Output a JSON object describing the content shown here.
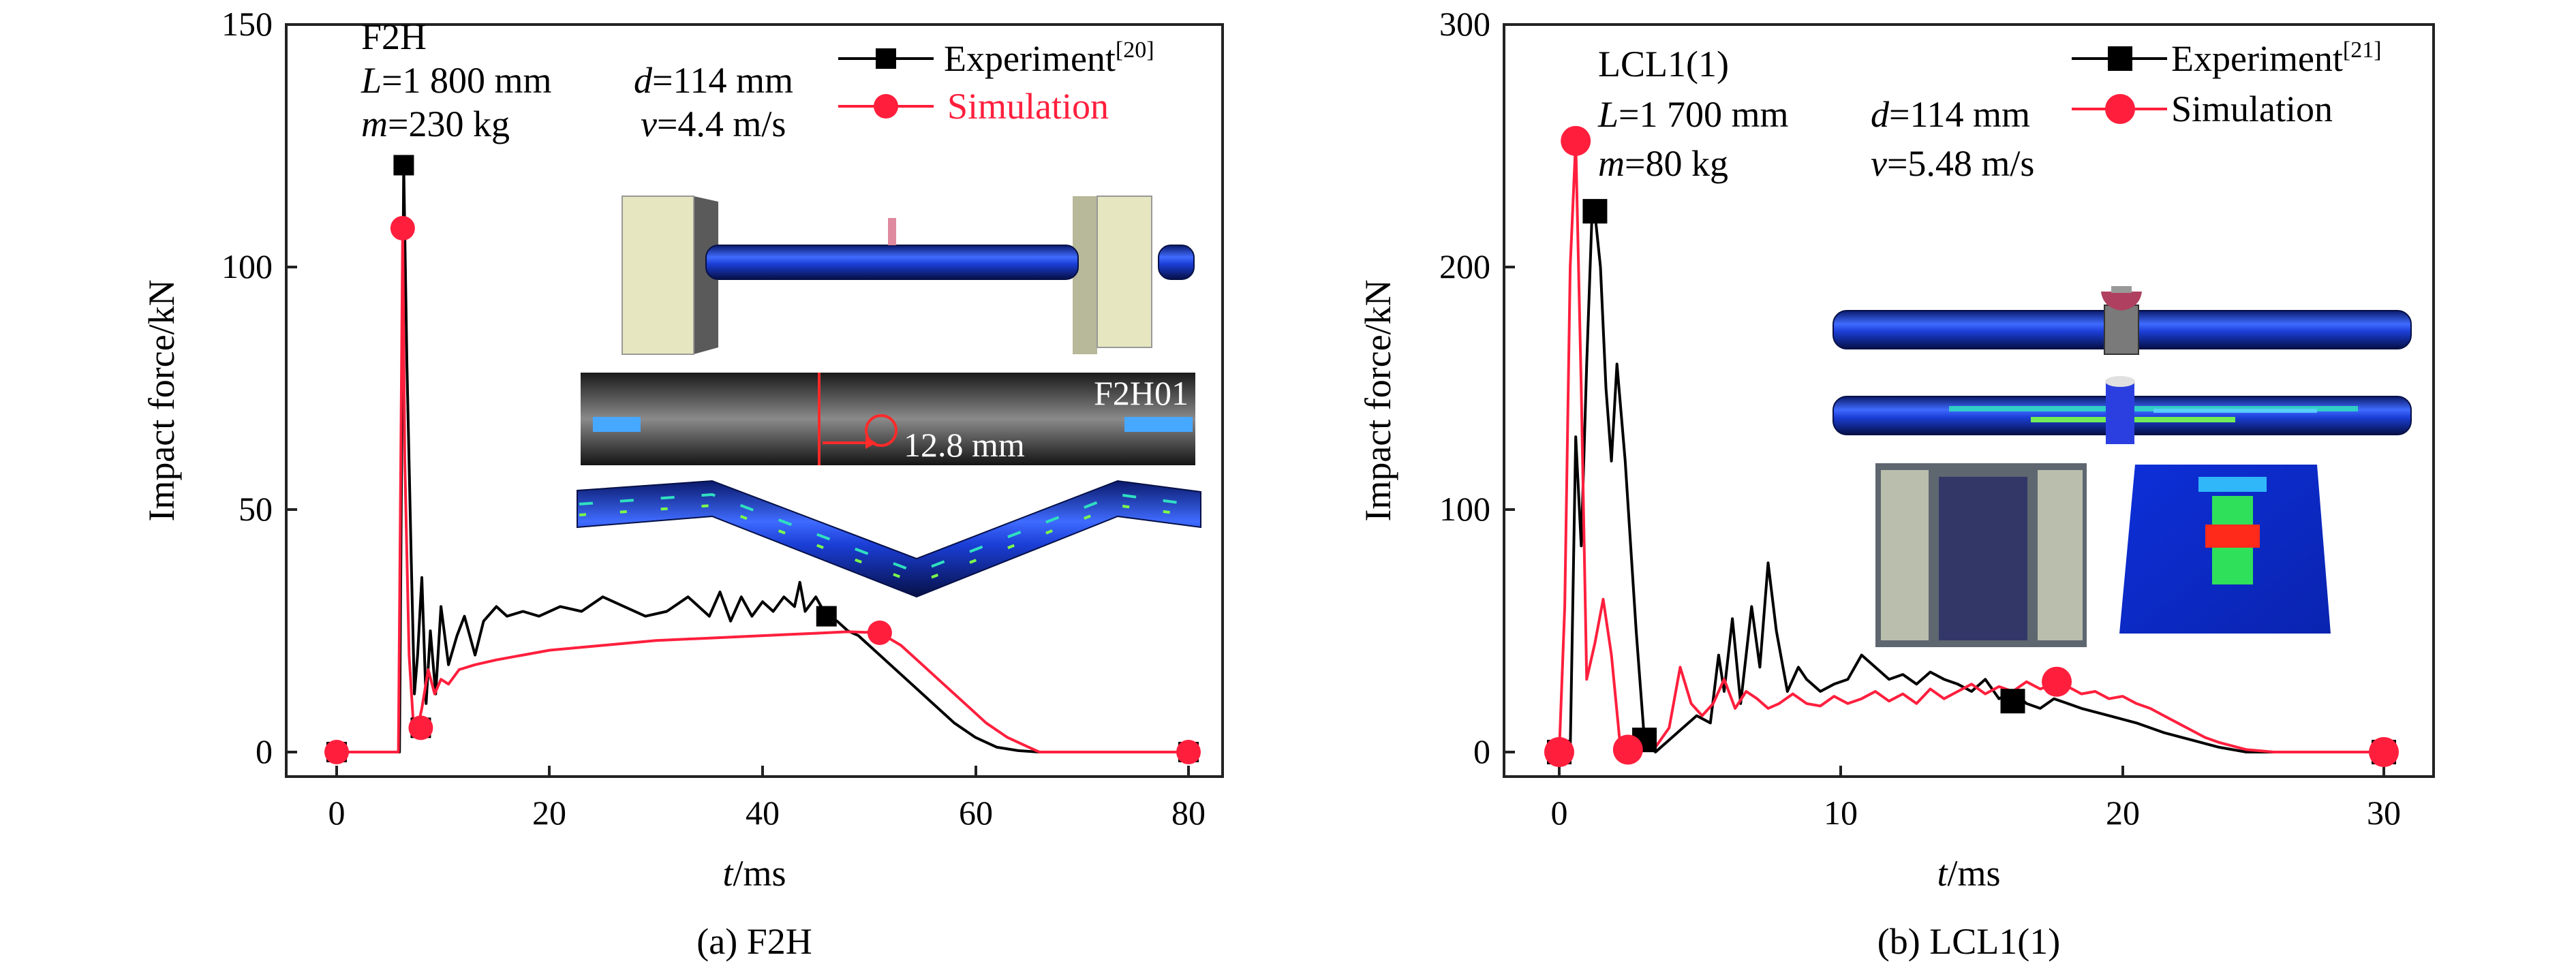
{
  "chart_data": [
    {
      "type": "line",
      "caption": "(a) F2H",
      "xlabel_italic": "t",
      "xlabel_unit": "/ms",
      "ylabel": "Impact force/kN",
      "xlim": [
        -4,
        84
      ],
      "ylim": [
        0,
        150
      ],
      "xticks": [
        "0",
        "20",
        "40",
        "60",
        "80"
      ],
      "yticks": [
        "0",
        "50",
        "100",
        "150"
      ],
      "annotation": {
        "specimen": "F2H",
        "L_sym": "L",
        "L_val": "=1 800 mm",
        "d_sym": "d",
        "d_val": "=114 mm",
        "m_sym": "m",
        "m_val": "=230 kg",
        "v_sym": "v",
        "v_val": "=4.4 m/s"
      },
      "inset_labels": {
        "photo_id": "F2H01",
        "photo_value": "12.8 mm"
      },
      "legend": {
        "position": "top-right",
        "entries": [
          {
            "label": "Experiment",
            "ref": "[20]",
            "color": "#000000",
            "marker": "square"
          },
          {
            "label": "Simulation",
            "ref": "",
            "color": "#ff1f3d",
            "marker": "circle"
          }
        ]
      },
      "series": [
        {
          "name": "Experiment",
          "color": "#000000",
          "x": [
            0,
            5.9,
            6.3,
            6.6,
            7.0,
            7.3,
            7.6,
            8.0,
            8.4,
            8.8,
            9.3,
            9.8,
            10.5,
            11.3,
            12.0,
            13.0,
            13.8,
            15.0,
            16.0,
            17.5,
            19.0,
            21.0,
            23.0,
            25.0,
            27.0,
            29.0,
            31.0,
            33.0,
            35.0,
            36.0,
            37.0,
            38.0,
            39.0,
            40.0,
            41.0,
            42.0,
            43.0,
            43.5,
            44.0,
            45.0,
            46.0,
            47.0,
            48.0,
            49.0,
            50.0,
            52.0,
            54.0,
            56.0,
            58.0,
            60.0,
            62.0,
            64.0,
            66.0,
            70.0,
            80.0
          ],
          "y": [
            0,
            0,
            121,
            80,
            40,
            12,
            20,
            36,
            10,
            25,
            12,
            30,
            18,
            24,
            28,
            20,
            27,
            30,
            28,
            29,
            28,
            30,
            29,
            32,
            30,
            28,
            29,
            32,
            28,
            33,
            27,
            32,
            28,
            31,
            29,
            32,
            30,
            35,
            29,
            32,
            28,
            27,
            25,
            24,
            22,
            18,
            14,
            10,
            6,
            3,
            1,
            0.3,
            0,
            0,
            0
          ]
        },
        {
          "name": "Simulation",
          "color": "#ff1f3d",
          "x": [
            0,
            5.8,
            6.2,
            6.4,
            6.8,
            7.2,
            7.6,
            8.0,
            8.6,
            9.2,
            9.8,
            10.5,
            11.5,
            13.0,
            15.0,
            17.5,
            20.0,
            25.0,
            30.0,
            35.0,
            40.0,
            45.0,
            48.0,
            51.0,
            53.0,
            55.0,
            57.0,
            59.0,
            61.0,
            63.0,
            65.0,
            66.0,
            70.0,
            80.0
          ],
          "y": [
            0,
            0,
            108,
            60,
            20,
            6,
            5,
            9,
            17,
            12,
            15,
            14,
            17,
            18,
            19,
            20,
            21,
            22,
            23,
            23.5,
            24,
            24.5,
            24.8,
            24.6,
            22,
            18,
            14,
            10,
            6,
            3,
            1,
            0,
            0,
            0
          ]
        }
      ],
      "markers": {
        "Experiment": {
          "x": [
            0,
            6.3,
            7.9,
            46.0,
            80.0
          ],
          "y": [
            0,
            121,
            5,
            28,
            0
          ]
        },
        "Simulation": {
          "x": [
            0,
            6.2,
            7.9,
            51.0,
            80.0
          ],
          "y": [
            0,
            108,
            5,
            24.6,
            0
          ]
        }
      }
    },
    {
      "type": "line",
      "caption": "(b) LCL1(1)",
      "xlabel_italic": "t",
      "xlabel_unit": "/ms",
      "ylabel": "Impact force/kN",
      "xlim": [
        -2,
        31
      ],
      "ylim": [
        0,
        300
      ],
      "xticks": [
        "0",
        "10",
        "20",
        "30"
      ],
      "yticks": [
        "0",
        "100",
        "200",
        "300"
      ],
      "annotation": {
        "specimen": "LCL1(1)",
        "L_sym": "L",
        "L_val": "=1 700 mm",
        "d_sym": "d",
        "d_val": "=114 mm",
        "m_sym": "m",
        "m_val": "=80 kg",
        "v_sym": "v",
        "v_val": "=5.48 m/s"
      },
      "legend": {
        "position": "top-right",
        "entries": [
          {
            "label": "Experiment",
            "ref": "[21]",
            "color": "#000000",
            "marker": "square"
          },
          {
            "label": "Simulation",
            "ref": "",
            "color": "#ff1f3d",
            "marker": "circle"
          }
        ]
      },
      "series": [
        {
          "name": "Experiment",
          "color": "#000000",
          "x": [
            0,
            0.4,
            0.6,
            0.8,
            1.0,
            1.2,
            1.3,
            1.5,
            1.7,
            1.9,
            2.1,
            2.4,
            2.8,
            3.1,
            3.5,
            4.0,
            4.5,
            5.0,
            5.5,
            5.8,
            6.0,
            6.3,
            6.6,
            7.0,
            7.3,
            7.6,
            7.9,
            8.3,
            8.7,
            9.0,
            9.5,
            10.0,
            10.5,
            11.0,
            11.5,
            12.0,
            12.5,
            13.0,
            13.5,
            14.0,
            14.5,
            15.0,
            15.5,
            16.0,
            16.5,
            17.0,
            17.5,
            18.0,
            18.5,
            19.0,
            20.0,
            21.0,
            22.0,
            23.0,
            24.0,
            25.0,
            30.0
          ],
          "y": [
            0,
            0,
            130,
            85,
            160,
            224,
            222,
            200,
            150,
            120,
            160,
            120,
            50,
            5,
            0,
            5,
            10,
            15,
            12,
            40,
            25,
            55,
            20,
            60,
            35,
            78,
            50,
            25,
            35,
            30,
            25,
            28,
            30,
            40,
            35,
            30,
            32,
            28,
            33,
            30,
            28,
            25,
            30,
            22,
            25,
            20,
            18,
            22,
            20,
            18,
            15,
            12,
            8,
            5,
            2,
            0,
            0
          ]
        },
        {
          "name": "Simulation",
          "color": "#ff1f3d",
          "x": [
            0,
            0.2,
            0.4,
            0.6,
            0.8,
            1.0,
            1.3,
            1.6,
            1.9,
            2.2,
            2.5,
            2.8,
            3.5,
            4.0,
            4.4,
            4.8,
            5.2,
            5.6,
            6.0,
            6.4,
            6.8,
            7.2,
            7.6,
            8.0,
            8.5,
            9.0,
            9.5,
            10.0,
            10.5,
            11.0,
            11.5,
            12.0,
            12.5,
            13.0,
            13.5,
            14.0,
            14.5,
            15.0,
            15.5,
            16.0,
            16.5,
            17.0,
            17.5,
            18.0,
            18.5,
            19.0,
            19.5,
            20.0,
            20.5,
            21.0,
            21.5,
            22.0,
            22.5,
            23.0,
            23.5,
            24.0,
            25.0,
            26.0,
            30.0
          ],
          "y": [
            0,
            60,
            200,
            252,
            150,
            30,
            45,
            63,
            40,
            5,
            1,
            2,
            2,
            10,
            35,
            20,
            15,
            20,
            30,
            18,
            25,
            22,
            18,
            20,
            24,
            20,
            19,
            23,
            20,
            22,
            25,
            21,
            24,
            20,
            26,
            22,
            25,
            28,
            24,
            27,
            25,
            29,
            26,
            28,
            27,
            24,
            25,
            22,
            23,
            20,
            18,
            15,
            12,
            9,
            6,
            4,
            1,
            0,
            0
          ]
        }
      ],
      "markers": {
        "Experiment": {
          "x": [
            0,
            1.3,
            3.1,
            16.5,
            30.0
          ],
          "y": [
            0,
            223,
            5,
            21,
            0
          ]
        },
        "Simulation": {
          "x": [
            0,
            0.6,
            2.5,
            18.1,
            30.0
          ],
          "y": [
            0,
            252,
            1,
            29,
            0
          ]
        }
      }
    }
  ]
}
